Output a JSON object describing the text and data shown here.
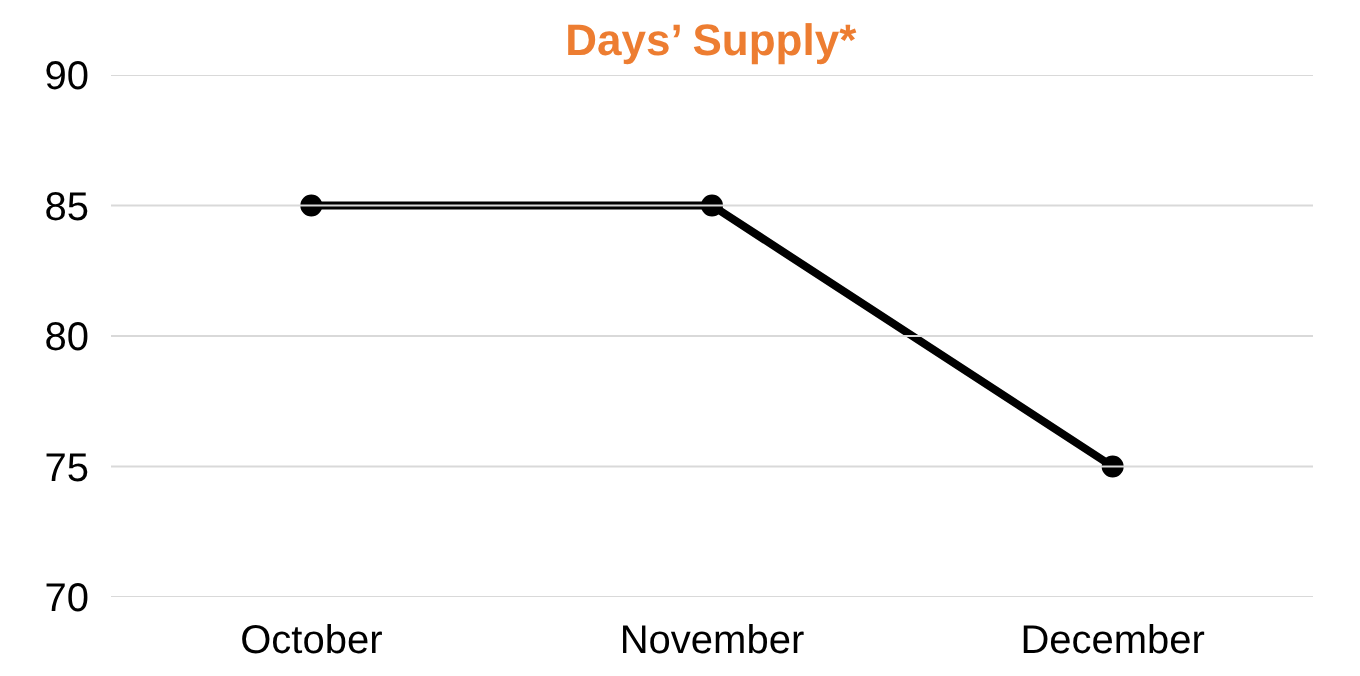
{
  "chart_data": {
    "type": "line",
    "title": "Days’ Supply*",
    "categories": [
      "October",
      "November",
      "December"
    ],
    "series": [
      {
        "color": "#000000",
        "values": [
          85,
          85,
          75
        ]
      }
    ],
    "ylim": [
      70,
      90
    ],
    "yticks": [
      70,
      75,
      80,
      85,
      90
    ],
    "grid": "y",
    "marker": "circle",
    "line_style": "solid"
  }
}
